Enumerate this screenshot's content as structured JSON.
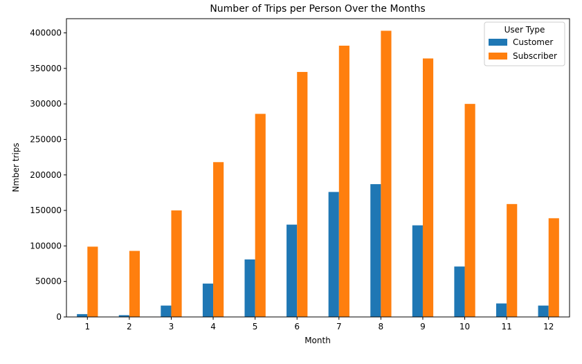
{
  "chart_data": {
    "type": "bar",
    "title": "Number of Trips per Person Over the Months",
    "xlabel": "Month",
    "ylabel": "Nmber trips",
    "categories": [
      "1",
      "2",
      "3",
      "4",
      "5",
      "6",
      "7",
      "8",
      "9",
      "10",
      "11",
      "12"
    ],
    "series": [
      {
        "name": "Customer",
        "color": "#1f77b4",
        "values": [
          4000,
          2500,
          16000,
          47000,
          81000,
          130000,
          176000,
          187000,
          129000,
          71000,
          19000,
          16000
        ]
      },
      {
        "name": "Subscriber",
        "color": "#ff7f0e",
        "values": [
          99000,
          93000,
          150000,
          218000,
          286000,
          345000,
          382000,
          403000,
          364000,
          300000,
          159000,
          139000
        ]
      }
    ],
    "ylim": [
      0,
      420000
    ],
    "yticks": [
      0,
      50000,
      100000,
      150000,
      200000,
      250000,
      300000,
      350000,
      400000
    ],
    "legend": {
      "title": "User Type",
      "placement": "top-right"
    },
    "grid": false
  }
}
